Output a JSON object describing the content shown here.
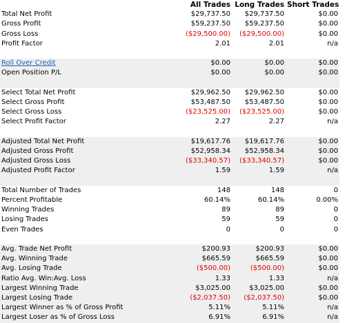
{
  "columns": [
    "All Trades",
    "Long Trades",
    "Short Trades"
  ],
  "sections": [
    {
      "rows": [
        {
          "label": "Total Net Profit",
          "values": [
            "$29,737.50",
            "$29,737.50",
            "$0.00"
          ]
        },
        {
          "label": "Gross Profit",
          "values": [
            "$59,237.50",
            "$59,237.50",
            "$0.00"
          ]
        },
        {
          "label": "Gross Loss",
          "values": [
            "($29,500.00)",
            "($29,500.00)",
            "$0.00"
          ]
        },
        {
          "label": "Profit Factor",
          "values": [
            "2.01",
            "2.01",
            "n/a"
          ]
        }
      ]
    },
    {
      "rows": [
        {
          "label": "Roll Over Credit",
          "link": true,
          "values": [
            "$0.00",
            "$0.00",
            "$0.00"
          ]
        },
        {
          "label": "Open Position P/L",
          "values": [
            "$0.00",
            "$0.00",
            "$0.00"
          ]
        }
      ]
    },
    {
      "rows": [
        {
          "label": "Select Total Net Profit",
          "values": [
            "$29,962.50",
            "$29,962.50",
            "$0.00"
          ]
        },
        {
          "label": "Select Gross Profit",
          "values": [
            "$53,487.50",
            "$53,487.50",
            "$0.00"
          ]
        },
        {
          "label": "Select Gross Loss",
          "values": [
            "($23,525.00)",
            "($23,525.00)",
            "$0.00"
          ]
        },
        {
          "label": "Select Profit Factor",
          "values": [
            "2.27",
            "2.27",
            "n/a"
          ]
        }
      ]
    },
    {
      "rows": [
        {
          "label": "Adjusted Total Net Profit",
          "values": [
            "$19,617.76",
            "$19,617.76",
            "$0.00"
          ]
        },
        {
          "label": "Adjusted Gross Profit",
          "values": [
            "$52,958.34",
            "$52,958.34",
            "$0.00"
          ]
        },
        {
          "label": "Adjusted Gross Loss",
          "values": [
            "($33,340.57)",
            "($33,340.57)",
            "$0.00"
          ]
        },
        {
          "label": "Adjusted Profit Factor",
          "values": [
            "1.59",
            "1.59",
            "n/a"
          ]
        }
      ]
    },
    {
      "rows": [
        {
          "label": "Total Number of Trades",
          "values": [
            "148",
            "148",
            "0"
          ]
        },
        {
          "label": "Percent Profitable",
          "values": [
            "60.14%",
            "60.14%",
            "0.00%"
          ]
        },
        {
          "label": "Winning Trades",
          "values": [
            "89",
            "89",
            "0"
          ]
        },
        {
          "label": "Losing Trades",
          "values": [
            "59",
            "59",
            "0"
          ]
        },
        {
          "label": "Even Trades",
          "values": [
            "0",
            "0",
            "0"
          ]
        }
      ]
    },
    {
      "rows": [
        {
          "label": "Avg. Trade Net Profit",
          "values": [
            "$200.93",
            "$200.93",
            "$0.00"
          ]
        },
        {
          "label": "Avg. Winning Trade",
          "values": [
            "$665.59",
            "$665.59",
            "$0.00"
          ]
        },
        {
          "label": "Avg. Losing Trade",
          "values": [
            "($500.00)",
            "($500.00)",
            "$0.00"
          ]
        },
        {
          "label": "Ratio Avg. Win:Avg. Loss",
          "values": [
            "1.33",
            "1.33",
            "n/a"
          ]
        },
        {
          "label": "Largest Winning Trade",
          "values": [
            "$3,025.00",
            "$3,025.00",
            "$0.00"
          ]
        },
        {
          "label": "Largest Losing Trade",
          "values": [
            "($2,037.50)",
            "($2,037.50)",
            "$0.00"
          ]
        },
        {
          "label": "Largest Winner as % of Gross Profit",
          "values": [
            "5.11%",
            "5.11%",
            "n/a"
          ]
        },
        {
          "label": "Largest Loser as % of Gross Loss",
          "values": [
            "6.91%",
            "6.91%",
            "n/a"
          ]
        }
      ]
    }
  ]
}
